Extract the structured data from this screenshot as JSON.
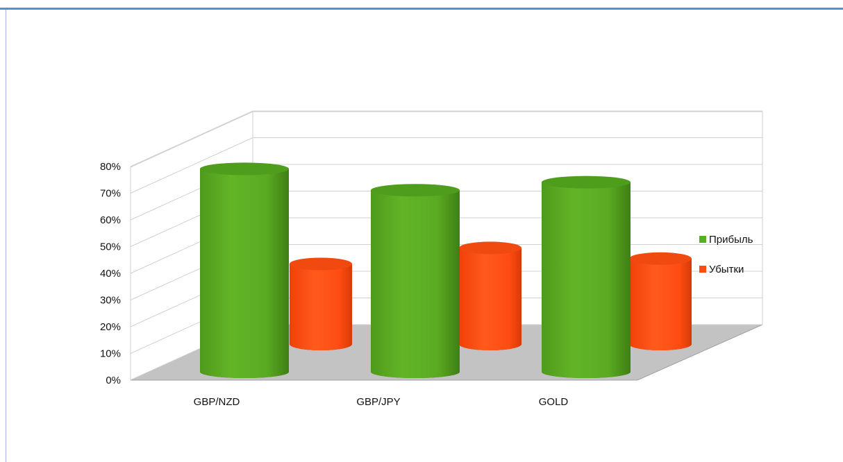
{
  "window": {
    "top_bar_text": ""
  },
  "chart_data": {
    "type": "bar",
    "style": "3d-cylinder",
    "categories": [
      "GBP/NZD",
      "GBP/JPY",
      "GOLD"
    ],
    "series": [
      {
        "name": "Прибыль",
        "values": [
          76,
          68,
          71
        ],
        "color": "#56ae22"
      },
      {
        "name": "Убытки",
        "values": [
          30,
          36,
          32
        ],
        "color": "#ff4a10"
      }
    ],
    "yticks": [
      "0%",
      "10%",
      "20%",
      "30%",
      "40%",
      "50%",
      "60%",
      "70%",
      "80%"
    ],
    "ylim": [
      0,
      80
    ],
    "y_unit": "%",
    "grid": true,
    "legend_position": "right",
    "title": "",
    "xlabel": "",
    "ylabel": ""
  }
}
